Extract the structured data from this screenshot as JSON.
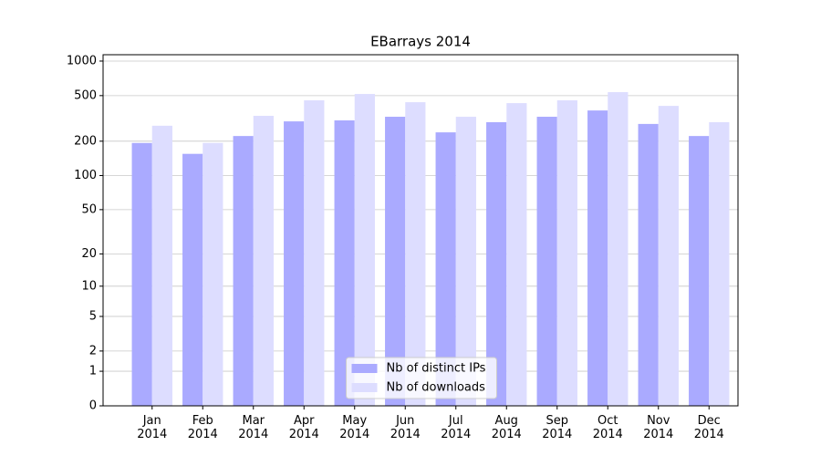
{
  "chart_data": {
    "type": "bar",
    "title": "EBarrays 2014",
    "categories": [
      "Jan\n2014",
      "Feb\n2014",
      "Mar\n2014",
      "Apr\n2014",
      "May\n2014",
      "Jun\n2014",
      "Jul\n2014",
      "Aug\n2014",
      "Sep\n2014",
      "Oct\n2014",
      "Nov\n2014",
      "Dec\n2014"
    ],
    "series": [
      {
        "name": "Nb of distinct IPs",
        "color": "#aaaaff",
        "values": [
          193,
          155,
          222,
          298,
          304,
          327,
          239,
          293,
          327,
          371,
          283,
          222
        ]
      },
      {
        "name": "Nb of downloads",
        "color": "#ddddff",
        "values": [
          273,
          193,
          333,
          455,
          517,
          438,
          327,
          430,
          455,
          536,
          407,
          293
        ]
      }
    ],
    "yscale": "log1p",
    "ylim": [
      0,
      1136
    ],
    "yticks": [
      0,
      1,
      2,
      5,
      10,
      20,
      50,
      100,
      200,
      500,
      1000
    ],
    "grid": true,
    "legend": "lower center"
  }
}
